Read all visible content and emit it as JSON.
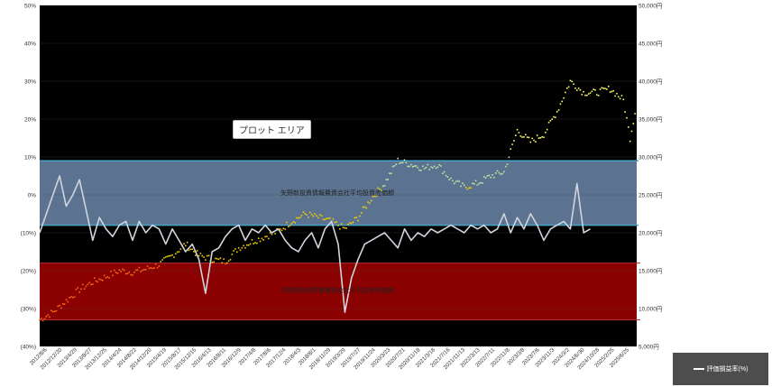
{
  "plot_area_label": "プロット エリア",
  "band_labels": {
    "upper": "矢野新投資情報費資会社平均投資売価額",
    "lower": "矢野新投資情報費資会社平均投資売価額"
  },
  "legend": {
    "label": "評価損益率(%)"
  },
  "colors": {
    "plot_bg": "#000000",
    "upper_band": "#5b7391",
    "lower_band": "#8b0000",
    "lower_band_edge": "#b03030",
    "band_line": "#4aa3c8",
    "pct_line": "#d0d4dc",
    "price_dots_low": "#ff6a1a",
    "price_dots_mid": "#f0d000",
    "price_dots_high": "#ffff66",
    "price_dots_green": "#c8e6a0"
  },
  "chart_data": {
    "type": "line",
    "y_left": {
      "ylim": [
        -40,
        50
      ],
      "ticks": [
        "50%",
        "40%",
        "30%",
        "20%",
        "10%",
        "0%",
        "(10%)",
        "(20%)",
        "(30%)",
        "(40%)"
      ]
    },
    "y_right": {
      "ylim": [
        5000,
        50000
      ],
      "ticks": [
        "50,000円",
        "45,000円",
        "40,000円",
        "35,000円",
        "30,000円",
        "25,000円",
        "20,000円",
        "15,000円",
        "10,000円",
        "5,000円"
      ]
    },
    "x_ticks": [
      "2012/8/6",
      "2012/12/20",
      "2013/4/29",
      "2013/8/27",
      "2013/12/25",
      "2014/4/24",
      "2014/8/22",
      "2014/12/20",
      "2015/4/19",
      "2015/8/17",
      "2015/12/15",
      "2016/4/13",
      "2016/8/11",
      "2016/12/9",
      "2017/4/8",
      "2017/8/6",
      "2017/12/4",
      "2018/4/3",
      "2018/8/1",
      "2018/11/29",
      "2019/3/29",
      "2019/7/27",
      "2019/11/24",
      "2020/3/23",
      "2020/7/21",
      "2020/11/18",
      "2021/3/18",
      "2021/7/16",
      "2021/11/13",
      "2022/3/13",
      "2022/7/11",
      "2022/11/8",
      "2023/3/8",
      "2023/7/6",
      "2023/11/3",
      "2024/3/2",
      "2024/6/30",
      "2024/10/28",
      "2025/2/25",
      "2025/6/25"
    ],
    "bands": {
      "upper_band_pct": [
        -8,
        9
      ],
      "lower_band_pct": [
        -33,
        -18
      ]
    },
    "series": [
      {
        "name": "評価損益率(%)",
        "axis": "left",
        "points": [
          [
            0,
            -10
          ],
          [
            1,
            -5
          ],
          [
            2,
            0
          ],
          [
            3,
            5
          ],
          [
            4,
            -3
          ],
          [
            5,
            0
          ],
          [
            6,
            4
          ],
          [
            7,
            -4
          ],
          [
            8,
            -12
          ],
          [
            9,
            -6
          ],
          [
            10,
            -9
          ],
          [
            11,
            -11
          ],
          [
            12,
            -8
          ],
          [
            13,
            -7
          ],
          [
            14,
            -12
          ],
          [
            15,
            -7
          ],
          [
            16,
            -10
          ],
          [
            17,
            -8
          ],
          [
            18,
            -9
          ],
          [
            19,
            -13
          ],
          [
            20,
            -9
          ],
          [
            21,
            -12
          ],
          [
            22,
            -15
          ],
          [
            23,
            -13
          ],
          [
            24,
            -17
          ],
          [
            25,
            -26
          ],
          [
            26,
            -15
          ],
          [
            27,
            -14
          ],
          [
            28,
            -11
          ],
          [
            29,
            -9
          ],
          [
            30,
            -8
          ],
          [
            31,
            -12
          ],
          [
            32,
            -9
          ],
          [
            33,
            -10
          ],
          [
            34,
            -8
          ],
          [
            35,
            -10
          ],
          [
            36,
            -9
          ],
          [
            37,
            -12
          ],
          [
            38,
            -14
          ],
          [
            39,
            -15
          ],
          [
            40,
            -12
          ],
          [
            41,
            -10
          ],
          [
            42,
            -14
          ],
          [
            43,
            -9
          ],
          [
            44,
            -7
          ],
          [
            45,
            -13
          ],
          [
            46,
            -31
          ],
          [
            47,
            -22
          ],
          [
            48,
            -17
          ],
          [
            49,
            -13
          ],
          [
            50,
            -12
          ],
          [
            51,
            -11
          ],
          [
            52,
            -10
          ],
          [
            53,
            -12
          ],
          [
            54,
            -14
          ],
          [
            55,
            -9
          ],
          [
            56,
            -12
          ],
          [
            57,
            -10
          ],
          [
            58,
            -11
          ],
          [
            59,
            -9
          ],
          [
            60,
            -10
          ],
          [
            61,
            -9
          ],
          [
            62,
            -8
          ],
          [
            63,
            -9
          ],
          [
            64,
            -10
          ],
          [
            65,
            -8
          ],
          [
            66,
            -9
          ],
          [
            67,
            -8
          ],
          [
            68,
            -10
          ],
          [
            69,
            -9
          ],
          [
            70,
            -5
          ],
          [
            71,
            -10
          ],
          [
            72,
            -6
          ],
          [
            73,
            -9
          ],
          [
            74,
            -5
          ],
          [
            75,
            -8
          ],
          [
            76,
            -12
          ],
          [
            77,
            -9
          ],
          [
            78,
            -8
          ],
          [
            79,
            -7
          ],
          [
            80,
            -9
          ],
          [
            81,
            3
          ],
          [
            82,
            -10
          ],
          [
            83,
            -9
          ]
        ]
      },
      {
        "name": "",
        "axis": "right",
        "points": [
          [
            0,
            8500
          ],
          [
            2,
            9500
          ],
          [
            4,
            11000
          ],
          [
            6,
            12500
          ],
          [
            8,
            13500
          ],
          [
            10,
            14200
          ],
          [
            12,
            15000
          ],
          [
            14,
            14800
          ],
          [
            16,
            15200
          ],
          [
            18,
            15800
          ],
          [
            20,
            17000
          ],
          [
            22,
            18500
          ],
          [
            24,
            17000
          ],
          [
            26,
            16500
          ],
          [
            28,
            16200
          ],
          [
            30,
            18000
          ],
          [
            32,
            18800
          ],
          [
            34,
            19500
          ],
          [
            36,
            20200
          ],
          [
            38,
            21500
          ],
          [
            40,
            22500
          ],
          [
            42,
            22000
          ],
          [
            44,
            21500
          ],
          [
            46,
            20500
          ],
          [
            48,
            22000
          ],
          [
            50,
            24500
          ],
          [
            52,
            26500
          ],
          [
            54,
            29500
          ],
          [
            56,
            29000
          ],
          [
            58,
            28500
          ],
          [
            60,
            29000
          ],
          [
            62,
            27000
          ],
          [
            64,
            26000
          ],
          [
            66,
            26500
          ],
          [
            68,
            27500
          ],
          [
            70,
            28000
          ],
          [
            72,
            33500
          ],
          [
            74,
            32000
          ],
          [
            76,
            33000
          ],
          [
            78,
            36000
          ],
          [
            80,
            40000
          ],
          [
            82,
            38500
          ],
          [
            84,
            38500
          ],
          [
            86,
            39000
          ],
          [
            88,
            37500
          ],
          [
            89,
            32500
          ],
          [
            90,
            37000
          ]
        ]
      }
    ]
  }
}
